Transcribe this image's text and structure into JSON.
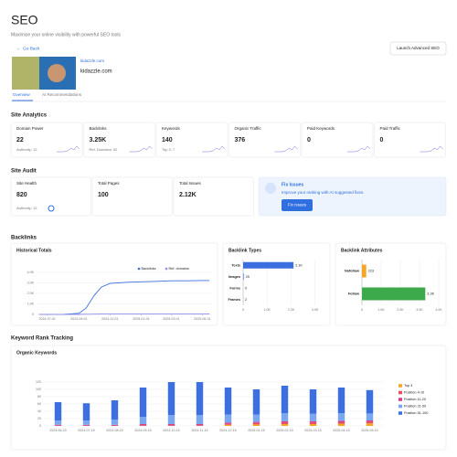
{
  "header": {
    "title": "SEO",
    "subtitle": "Maximise your online visibility with powerful SEO tools",
    "action": "Launch Advanced SEO",
    "back": "Go Back"
  },
  "site": {
    "link": "kidazzle.com",
    "name": "kidazzle.com"
  },
  "tabs": [
    "Overview",
    "AI Recommendations"
  ],
  "site_analytics": {
    "title": "Site Analytics",
    "cards": [
      {
        "label": "Domain Power",
        "value": 22,
        "note": "Authority: 12"
      },
      {
        "label": "Backlinks",
        "value": "3.25K",
        "note": "Ref. Domains: 52"
      },
      {
        "label": "Keywords",
        "value": 140,
        "note": "Top 3: 7"
      },
      {
        "label": "Organic Traffic",
        "value": 376
      },
      {
        "label": "Paid Keywords",
        "value": 0
      },
      {
        "label": "Paid Traffic",
        "value": 0
      }
    ]
  },
  "site_audit": {
    "title": "Site Audit",
    "cards": [
      {
        "label": "Site Health",
        "value": 820,
        "note": "Authority: 12"
      },
      {
        "label": "Total Pages",
        "value": 100
      },
      {
        "label": "Total Issues",
        "value": "2.12K"
      }
    ],
    "fix": {
      "title": "Fix Issues",
      "text": "Improve your ranking with AI suggested fixes.",
      "button": "Fix Issues"
    }
  },
  "backlinks": {
    "title": "Backlinks"
  },
  "rank_tracking": {
    "title": "Keyword Rank Tracking"
  },
  "chart_data": [
    {
      "type": "line",
      "title": "Historical Totals",
      "x": [
        "2024-06-15",
        "2024-07-01",
        "2024-08-01",
        "2024-09-01",
        "2024-09-15",
        "2024-10-01",
        "2024-10-15",
        "2024-11-01",
        "2024-12-01",
        "2025-01-01",
        "2025-02-01",
        "2025-03-01",
        "2025-04-01",
        "2025-05-01",
        "2025-05-15"
      ],
      "series": [
        {
          "name": "Backlinks",
          "color": "#3b6fe0",
          "values": [
            0,
            0,
            0,
            100,
            600,
            1800,
            2600,
            2950,
            3050,
            3100,
            3150,
            3200,
            3200,
            3220,
            3220
          ]
        },
        {
          "name": "Ref. domains",
          "color": "#8a8fe8",
          "values": [
            0,
            0,
            0,
            10,
            20,
            30,
            40,
            45,
            48,
            50,
            50,
            52,
            52,
            52,
            52
          ]
        }
      ],
      "xlim": [
        "2024-06-10",
        "2025-05-20"
      ],
      "xticks": [
        "2024-07-01",
        "2024-09-01",
        "2024-11-01",
        "2025-01-01",
        "2025-03-01",
        "2025-05-01"
      ],
      "ylim": [
        0,
        4000
      ],
      "yticks": [
        0,
        {
          "value": 1000,
          "label": "1.0K"
        },
        {
          "value": 2000,
          "label": "2.0K"
        },
        {
          "value": 3000,
          "label": "3.0K"
        },
        {
          "value": 4000,
          "label": "4.0K"
        }
      ],
      "grid": true,
      "legend": "top-right"
    },
    {
      "type": "bar",
      "orientation": "horizontal",
      "title": "Backlink Types",
      "categories": [
        "Texts",
        "Images",
        "Forms",
        "Frames"
      ],
      "values": [
        2100,
        25,
        0,
        2
      ],
      "value_labels": [
        "2.1K",
        "25",
        "0",
        "2"
      ],
      "color": "#3b6fe0",
      "xlim": [
        0,
        3200
      ],
      "xticks": [
        0,
        {
          "value": 1000,
          "label": "1.0K"
        },
        {
          "value": 2000,
          "label": "2.0K"
        },
        {
          "value": 3000,
          "label": "3.0K"
        }
      ],
      "grid": true
    },
    {
      "type": "bar",
      "orientation": "horizontal",
      "title": "Backlink Attributes",
      "categories": [
        "Nofollow",
        "Follow"
      ],
      "values": [
        223,
        3300
      ],
      "value_labels": [
        "223",
        "3.3K"
      ],
      "colors": [
        "#f5a623",
        "#3caa4a"
      ],
      "xlim": [
        0,
        4000
      ],
      "xticks": [
        0,
        {
          "value": 1000,
          "label": "1.0K"
        },
        {
          "value": 2000,
          "label": "2.0K"
        },
        {
          "value": 3000,
          "label": "3.0K"
        },
        {
          "value": 4000,
          "label": "4.0K"
        }
      ],
      "grid": true
    },
    {
      "type": "bar",
      "stacked": true,
      "title": "Organic Keywords",
      "categories": [
        "2024-06-15",
        "2024-07-15",
        "2024-08-15",
        "2024-09-15",
        "2024-10-15",
        "2024-11-15",
        "2024-12-15",
        "2025-01-15",
        "2025-02-15",
        "2025-03-15",
        "2025-04-15",
        "2025-05-15"
      ],
      "series": [
        {
          "name": "Top 3",
          "color": "#f5a623",
          "values": [
            0,
            0,
            0,
            0,
            0,
            0,
            3,
            4,
            5,
            5,
            6,
            7
          ]
        },
        {
          "name": "Position 4-10",
          "color": "#e8505b",
          "values": [
            1,
            1,
            1,
            2,
            2,
            2,
            3,
            4,
            4,
            4,
            4,
            4
          ]
        },
        {
          "name": "Position 11-20",
          "color": "#d63f8c",
          "values": [
            2,
            2,
            2,
            3,
            3,
            3,
            3,
            3,
            4,
            4,
            4,
            4
          ]
        },
        {
          "name": "Position 21-50",
          "color": "#7ba7f0",
          "values": [
            12,
            12,
            14,
            20,
            25,
            25,
            22,
            20,
            22,
            20,
            21,
            19
          ]
        },
        {
          "name": "Position 51-100",
          "color": "#3d6fe0",
          "values": [
            50,
            47,
            53,
            80,
            90,
            90,
            74,
            69,
            75,
            67,
            70,
            64
          ]
        }
      ],
      "ylim": [
        0,
        120
      ],
      "yticks": [
        0,
        20,
        40,
        60,
        80,
        100,
        120
      ],
      "grid": true,
      "legend": "right"
    }
  ]
}
